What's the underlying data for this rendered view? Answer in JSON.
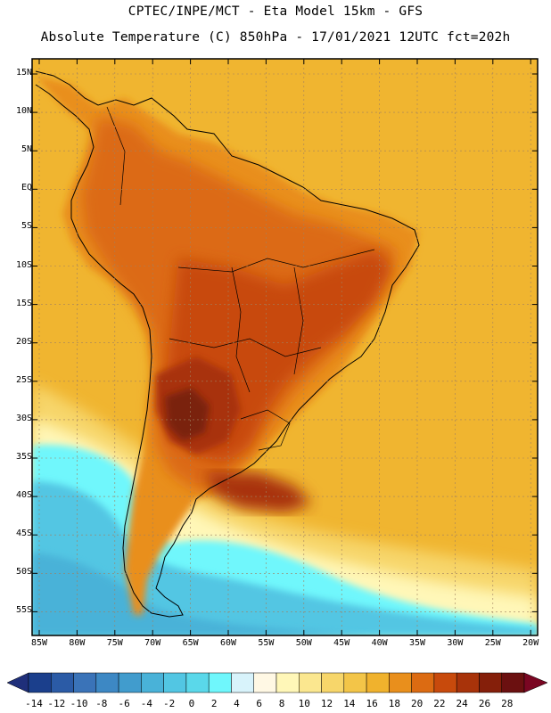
{
  "header": {
    "line1": "CPTEC/INPE/MCT -  Eta Model 15km - GFS",
    "line2": "Absolute Temperature (C) 850hPa - 17/01/2021 12UTC fct=202h"
  },
  "axes": {
    "lat_labels": [
      "15N",
      "10N",
      "5N",
      "EQ",
      "5S",
      "10S",
      "15S",
      "20S",
      "25S",
      "30S",
      "35S",
      "40S",
      "45S",
      "50S",
      "55S"
    ],
    "lon_labels": [
      "85W",
      "80W",
      "75W",
      "70W",
      "65W",
      "60W",
      "55W",
      "50W",
      "45W",
      "40W",
      "35W",
      "30W",
      "25W",
      "20W"
    ]
  },
  "colorbar": {
    "labels": [
      "-14",
      "-12",
      "-10",
      "-8",
      "-6",
      "-4",
      "-2",
      "0",
      "2",
      "4",
      "6",
      "8",
      "10",
      "12",
      "14",
      "16",
      "18",
      "20",
      "22",
      "24",
      "26",
      "28"
    ],
    "colors": [
      "#1b3f8c",
      "#2b5ba6",
      "#3a73b8",
      "#3d88c4",
      "#419ccd",
      "#49b2d8",
      "#52c6e3",
      "#5ad8ea",
      "#6ff7fc",
      "#d8f3fb",
      "#fff8e4",
      "#fff7b8",
      "#fbe78f",
      "#f7d66a",
      "#f3c548",
      "#f0b22d",
      "#e98f1c",
      "#dc6b12",
      "#c84a0c",
      "#a8330a",
      "#851f0a",
      "#6b1010"
    ],
    "under_color": "#1f2f7a",
    "over_color": "#7a0622"
  },
  "map": {
    "ocean_color": "#f0b530",
    "warm_land_color": "#c85f12",
    "hot_core_color": "#7a2211",
    "cold_color": "#52c6e3"
  }
}
